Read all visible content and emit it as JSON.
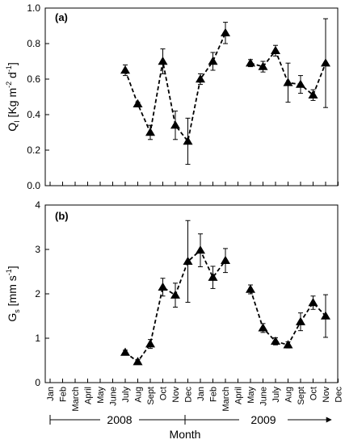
{
  "months": [
    "Jan",
    "Feb",
    "March",
    "April",
    "May",
    "June",
    "July",
    "Aug",
    "Sept",
    "Oct",
    "Nov",
    "Dec",
    "Jan",
    "Feb",
    "March",
    "April",
    "May",
    "June",
    "July",
    "Aug",
    "Sept",
    "Oct",
    "Nov",
    "Dec"
  ],
  "year_labels": [
    "2008",
    "2009"
  ],
  "xlabel": "Month",
  "chart_data": [
    {
      "type": "line",
      "panel_label": "(a)",
      "ylabel": "Q_I [Kg m^-2 d^-1]",
      "ylim": [
        0,
        1.0
      ],
      "yticks": [
        "0.0",
        "0.2",
        "0.4",
        "0.6",
        "0.8",
        "1.0"
      ],
      "grid": false,
      "series": [
        {
          "points": [
            {
              "month": "July 2008",
              "y": 0.65,
              "err": 0.03
            },
            {
              "month": "Aug 2008",
              "y": 0.46,
              "err": 0.01
            },
            {
              "month": "Sept 2008",
              "y": 0.3,
              "err": 0.04
            },
            {
              "month": "Oct 2008",
              "y": 0.7,
              "err": 0.07
            },
            {
              "month": "Nov 2008",
              "y": 0.34,
              "err": 0.08
            },
            {
              "month": "Dec 2008",
              "y": 0.25,
              "err": 0.13
            },
            {
              "month": "Jan 2009",
              "y": 0.6,
              "err": 0.03
            },
            {
              "month": "Feb 2009",
              "y": 0.7,
              "err": 0.05
            },
            {
              "month": "March 2009",
              "y": 0.86,
              "err": 0.06
            }
          ]
        },
        {
          "points": [
            {
              "month": "May 2009",
              "y": 0.69,
              "err": 0.02
            },
            {
              "month": "June 2009",
              "y": 0.67,
              "err": 0.03
            },
            {
              "month": "July 2009",
              "y": 0.76,
              "err": 0.03
            },
            {
              "month": "Aug 2009",
              "y": 0.58,
              "err": 0.11
            },
            {
              "month": "Sept 2009",
              "y": 0.57,
              "err": 0.05
            },
            {
              "month": "Oct 2009",
              "y": 0.51,
              "err": 0.03
            },
            {
              "month": "Nov 2009",
              "y": 0.69,
              "err": 0.25
            }
          ]
        }
      ]
    },
    {
      "type": "line",
      "panel_label": "(b)",
      "ylabel": "G_s [mm s^-1]",
      "ylim": [
        0,
        4
      ],
      "yticks": [
        "0",
        "1",
        "2",
        "3",
        "4"
      ],
      "grid": false,
      "series": [
        {
          "points": [
            {
              "month": "July 2008",
              "y": 0.68,
              "err": 0.05
            },
            {
              "month": "Aug 2008",
              "y": 0.47,
              "err": 0.05
            },
            {
              "month": "Sept 2008",
              "y": 0.87,
              "err": 0.1
            },
            {
              "month": "Oct 2008",
              "y": 2.15,
              "err": 0.2
            },
            {
              "month": "Nov 2008",
              "y": 1.97,
              "err": 0.27
            },
            {
              "month": "Dec 2008",
              "y": 2.73,
              "err": 0.92
            },
            {
              "month": "Jan 2009",
              "y": 2.98,
              "err": 0.37
            },
            {
              "month": "Feb 2009",
              "y": 2.37,
              "err": 0.25
            },
            {
              "month": "March 2009",
              "y": 2.75,
              "err": 0.27
            }
          ]
        },
        {
          "points": [
            {
              "month": "May 2009",
              "y": 2.1,
              "err": 0.1
            },
            {
              "month": "June 2009",
              "y": 1.23,
              "err": 0.1
            },
            {
              "month": "July 2009",
              "y": 0.93,
              "err": 0.08
            },
            {
              "month": "Aug 2009",
              "y": 0.85,
              "err": 0.07
            },
            {
              "month": "Sept 2009",
              "y": 1.37,
              "err": 0.2
            },
            {
              "month": "Oct 2009",
              "y": 1.8,
              "err": 0.15
            },
            {
              "month": "Nov 2009",
              "y": 1.5,
              "err": 0.48
            }
          ]
        }
      ]
    }
  ]
}
